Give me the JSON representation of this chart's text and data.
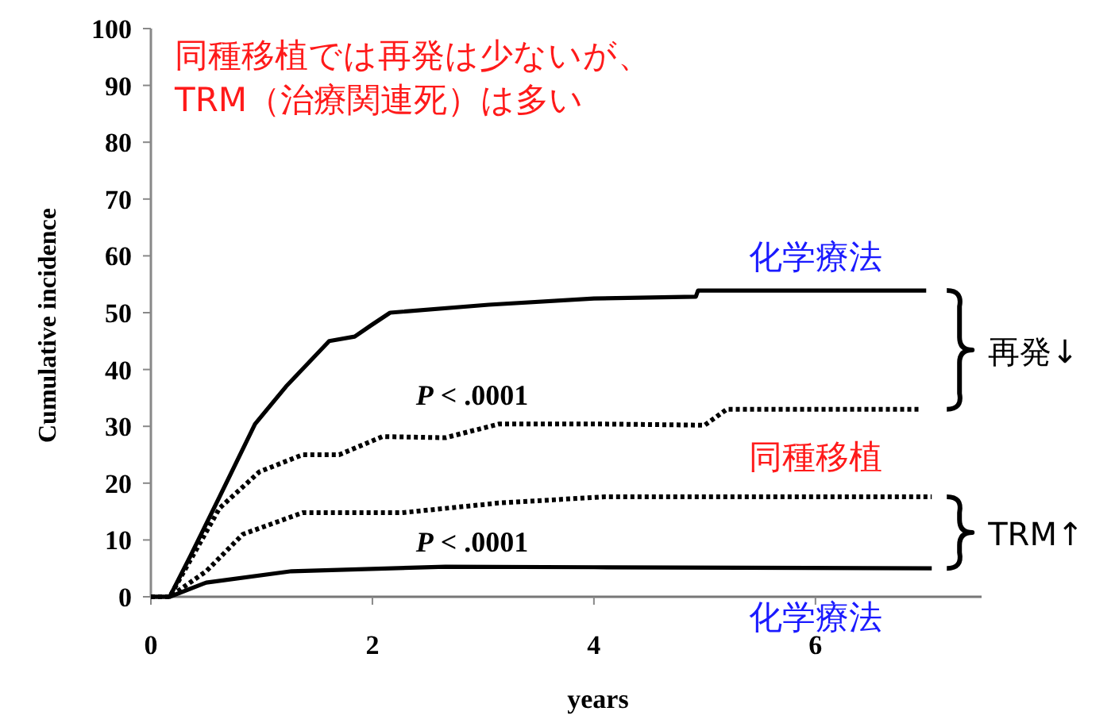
{
  "chart_data": {
    "type": "line",
    "title": "同種移植では再発は少ないが、",
    "subtitle": "TRM（治療関連死）は多い",
    "xlabel": "years",
    "ylabel": "Cumulative incidence",
    "xlim": [
      0,
      7.5
    ],
    "xticks": [
      0,
      2,
      4,
      6
    ],
    "ylim": [
      0,
      100
    ],
    "yticks": [
      0,
      10,
      20,
      30,
      40,
      50,
      60,
      70,
      80,
      90,
      100
    ],
    "grid": false,
    "marker": "none",
    "series": [
      {
        "name": "化学療法",
        "color": "#000000",
        "line_style": "solid",
        "x": [
          0,
          0.17,
          0.36,
          0.62,
          0.94,
          1.22,
          1.61,
          1.84,
          1.99,
          2.16,
          3.05,
          4.0,
          4.92,
          4.94,
          7.0
        ],
        "values": [
          0,
          0,
          7.3,
          17.6,
          30.4,
          37,
          45,
          45.8,
          47.8,
          50,
          51.4,
          52.5,
          52.8,
          53.9,
          53.9
        ]
      },
      {
        "name": "化学療法",
        "color": "#000000",
        "line_style": "solid",
        "x": [
          0,
          0.17,
          0.5,
          1.27,
          2.66,
          4.0,
          7.05
        ],
        "values": [
          0,
          0,
          2.5,
          4.5,
          5.3,
          5.2,
          5.0
        ]
      },
      {
        "name": "同種移植",
        "color": "#000000",
        "line_style": "dotted",
        "x": [
          0,
          0.17,
          0.62,
          0.98,
          1.37,
          1.7,
          2.09,
          2.66,
          3.14,
          4.1,
          5.0,
          5.2,
          6.94
        ],
        "values": [
          0,
          0,
          15.6,
          22,
          25,
          25,
          28.2,
          28,
          30.4,
          30.4,
          30.2,
          33,
          33
        ]
      },
      {
        "color": "#000000",
        "line_style": "dotted",
        "x": [
          0,
          0.17,
          0.5,
          0.83,
          1.37,
          2.27,
          3.14,
          4.1,
          7.05
        ],
        "values": [
          0,
          0,
          4.5,
          11,
          14.8,
          14.8,
          16.5,
          17.6,
          17.6
        ]
      }
    ],
    "annotations": [
      "*P* < .0001",
      "*P* < .0001",
      "再発↓",
      "TRM↑"
    ]
  }
}
